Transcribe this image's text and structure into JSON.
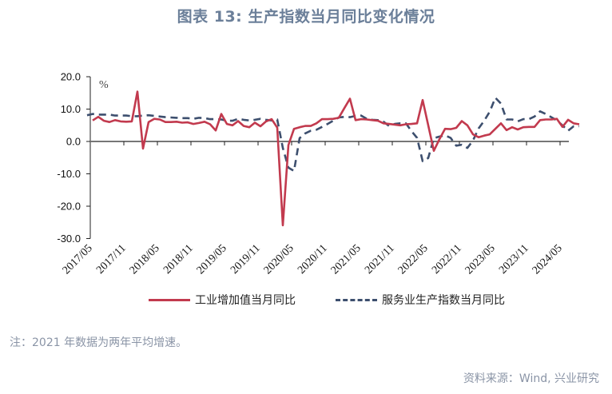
{
  "title": "图表 13: 生产指数当月同比变化情况",
  "unit_label": "%",
  "legend": {
    "series1": "工业增加值当月同比",
    "series2": "服务业生产指数当月同比"
  },
  "note": "注：2021 年数据为两年平均增速。",
  "source": "资料来源：Wind, 兴业研究",
  "colors": {
    "industrial": "#c23a4e",
    "services": "#3d4f6e",
    "title": "#6b7f99",
    "axis": "#777777"
  },
  "chart_data": {
    "type": "line",
    "title": "图表 13: 生产指数当月同比变化情况",
    "xlabel": "",
    "ylabel": "%",
    "ylim": [
      -30,
      20
    ],
    "yticks": [
      "20.0",
      "10.0",
      "0.0",
      "-10.0",
      "-20.0",
      "-30.0"
    ],
    "xticks": [
      "2017/05",
      "2017/11",
      "2018/05",
      "2018/11",
      "2019/05",
      "2019/11",
      "2020/05",
      "2020/11",
      "2021/05",
      "2021/11",
      "2022/05",
      "2022/11",
      "2023/05",
      "2023/11",
      "2024/05"
    ],
    "grid": false,
    "legend_position": "bottom",
    "x_start": "2017/05",
    "x_end": "2024/06",
    "series": [
      {
        "name": "工业增加值当月同比",
        "style": "solid",
        "values": [
          6.5,
          7.6,
          6.4,
          6.0,
          6.6,
          6.2,
          6.1,
          6.2,
          15.4,
          -2.2,
          6.0,
          7.0,
          6.8,
          6.0,
          6.0,
          6.1,
          5.8,
          5.9,
          5.4,
          5.7,
          6.1,
          5.3,
          3.4,
          8.5,
          5.4,
          5.0,
          6.3,
          4.8,
          4.4,
          5.8,
          4.7,
          6.2,
          6.9,
          4.3,
          -25.9,
          -1.1,
          3.9,
          4.4,
          4.8,
          4.8,
          5.6,
          6.9,
          6.9,
          7.0,
          7.3,
          10.3,
          13.2,
          6.6,
          6.9,
          6.8,
          6.6,
          6.4,
          5.6,
          5.4,
          5.2,
          5.0,
          5.3,
          5.4,
          5.6,
          12.8,
          5.0,
          -2.9,
          0.7,
          3.9,
          3.8,
          4.2,
          6.3,
          5.0,
          2.2,
          1.3,
          1.8,
          2.2,
          3.9,
          5.6,
          3.5,
          4.4,
          3.7,
          4.4,
          4.5,
          4.5,
          6.6,
          6.8,
          6.8,
          7.0,
          4.5,
          6.7,
          5.6,
          5.3
        ],
        "x_offset_months": 0
      },
      {
        "name": "服务业生产指数当月同比",
        "style": "dashed",
        "values": [
          8.1,
          8.5,
          8.3,
          8.3,
          8.3,
          8.0,
          8.0,
          8.0,
          7.8,
          7.8,
          8.0,
          8.1,
          7.9,
          7.7,
          7.5,
          7.4,
          7.3,
          7.2,
          7.2,
          7.0,
          7.3,
          7.2,
          6.9,
          6.9,
          6.8,
          6.4,
          6.4,
          7.0,
          6.7,
          6.5,
          6.7,
          7.0,
          6.7,
          6.5,
          6.8,
          -2.0,
          -8.1,
          -9.1,
          1.0,
          2.5,
          3.3,
          3.6,
          4.5,
          5.4,
          6.4,
          7.4,
          7.6,
          7.5,
          7.9,
          8.0,
          7.0,
          6.7,
          6.6,
          6.1,
          4.8,
          5.4,
          5.6,
          5.6,
          3.2,
          1.1,
          -6.1,
          -5.1,
          1.0,
          1.5,
          1.9,
          1.1,
          -1.3,
          -1.0,
          -2.0,
          0.3,
          4.0,
          6.4,
          9.2,
          13.5,
          11.7,
          6.8,
          6.8,
          6.2,
          6.9,
          6.9,
          7.7,
          9.3,
          8.5,
          7.5,
          6.5,
          5.0,
          3.3,
          4.7,
          4.7
        ],
        "x_offset_months": -1
      }
    ]
  }
}
